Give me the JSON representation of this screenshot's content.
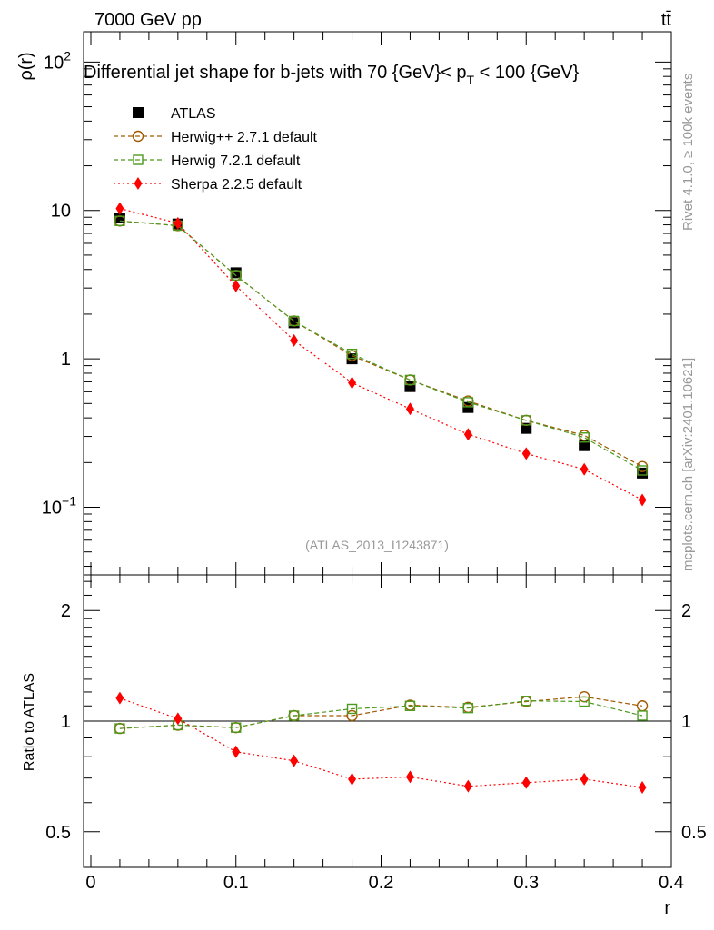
{
  "header": {
    "left_label": "7000 GeV pp",
    "right_label": "tt̄"
  },
  "side_labels": {
    "rivet": "Rivet 4.1.0, ≥ 100k events",
    "mcplots": "mcplots.cern.ch [arXiv:2401.10621]"
  },
  "chart_data": [
    {
      "type": "scatter",
      "title": "Differential jet shape for b-jets with 70 {GeV}< p_T < 100 {GeV}",
      "title_parts": {
        "prefix": "Differential jet shape for b-jets with 70 {GeV}< p",
        "subscript": "T",
        "suffix": " < 100 {GeV}"
      },
      "ylabel": "ρ(r)",
      "yscale": "log",
      "ylim": [
        0.035,
        160
      ],
      "xlim": [
        -0.005,
        0.4
      ],
      "yticks": [
        {
          "value": 100,
          "base": "10",
          "exp": "2"
        },
        {
          "value": 10,
          "base": "10",
          "exp": ""
        },
        {
          "value": 1,
          "base": "1",
          "exp": ""
        },
        {
          "value": 0.1,
          "base": "10",
          "exp": "−1"
        }
      ],
      "watermark": "(ATLAS_2013_I1243871)",
      "legend": [
        {
          "label": "ATLAS",
          "color": "#000000",
          "marker": "square-filled",
          "line": "none"
        },
        {
          "label": "Herwig++ 2.7.1 default",
          "color": "#a05a00",
          "marker": "circle-open",
          "line": "dashed"
        },
        {
          "label": "Herwig 7.2.1 default",
          "color": "#4c9a1e",
          "marker": "square-open",
          "line": "dashed"
        },
        {
          "label": "Sherpa 2.2.5 default",
          "color": "#ff0000",
          "marker": "diamond-filled",
          "line": "dotted"
        }
      ],
      "x": [
        0.02,
        0.06,
        0.1,
        0.14,
        0.18,
        0.22,
        0.26,
        0.3,
        0.34,
        0.38
      ],
      "series": [
        {
          "name": "ATLAS",
          "values": [
            8.9,
            8.1,
            3.8,
            1.75,
            1.0,
            0.65,
            0.47,
            0.34,
            0.26,
            0.17
          ]
        },
        {
          "name": "Herwig++ 2.7.1 default",
          "values": [
            8.5,
            7.9,
            3.65,
            1.8,
            1.05,
            0.72,
            0.52,
            0.385,
            0.305,
            0.188
          ]
        },
        {
          "name": "Herwig 7.2.1 default",
          "values": [
            8.5,
            7.9,
            3.65,
            1.8,
            1.08,
            0.72,
            0.51,
            0.385,
            0.295,
            0.177
          ]
        },
        {
          "name": "Sherpa 2.2.5 default",
          "values": [
            10.3,
            8.2,
            3.1,
            1.33,
            0.69,
            0.46,
            0.31,
            0.23,
            0.18,
            0.112
          ]
        }
      ]
    },
    {
      "type": "scatter",
      "title": "",
      "ylabel": "Ratio to ATLAS",
      "xlabel": "r",
      "yscale": "log",
      "ylim": [
        0.4,
        2.5
      ],
      "xlim": [
        -0.005,
        0.4
      ],
      "yticks": [
        {
          "value": 2,
          "label": "2"
        },
        {
          "value": 1,
          "label": "1"
        },
        {
          "value": 0.5,
          "label": "0.5"
        }
      ],
      "xticks": [
        {
          "value": 0,
          "label": "0"
        },
        {
          "value": 0.1,
          "label": "0.1"
        },
        {
          "value": 0.2,
          "label": "0.2"
        },
        {
          "value": 0.3,
          "label": "0.3"
        },
        {
          "value": 0.4,
          "label": "0.4"
        }
      ],
      "reference_line": 1,
      "x": [
        0.02,
        0.06,
        0.1,
        0.14,
        0.18,
        0.22,
        0.26,
        0.3,
        0.34,
        0.38
      ],
      "series": [
        {
          "name": "Herwig++ 2.7.1 default",
          "values": [
            0.955,
            0.975,
            0.96,
            1.035,
            1.035,
            1.105,
            1.09,
            1.13,
            1.165,
            1.1
          ]
        },
        {
          "name": "Herwig 7.2.1 default",
          "values": [
            0.955,
            0.975,
            0.96,
            1.035,
            1.08,
            1.1,
            1.085,
            1.135,
            1.13,
            1.035
          ]
        },
        {
          "name": "Sherpa 2.2.5 default",
          "values": [
            1.155,
            1.015,
            0.825,
            0.78,
            0.695,
            0.705,
            0.665,
            0.68,
            0.695,
            0.66
          ]
        }
      ]
    }
  ]
}
